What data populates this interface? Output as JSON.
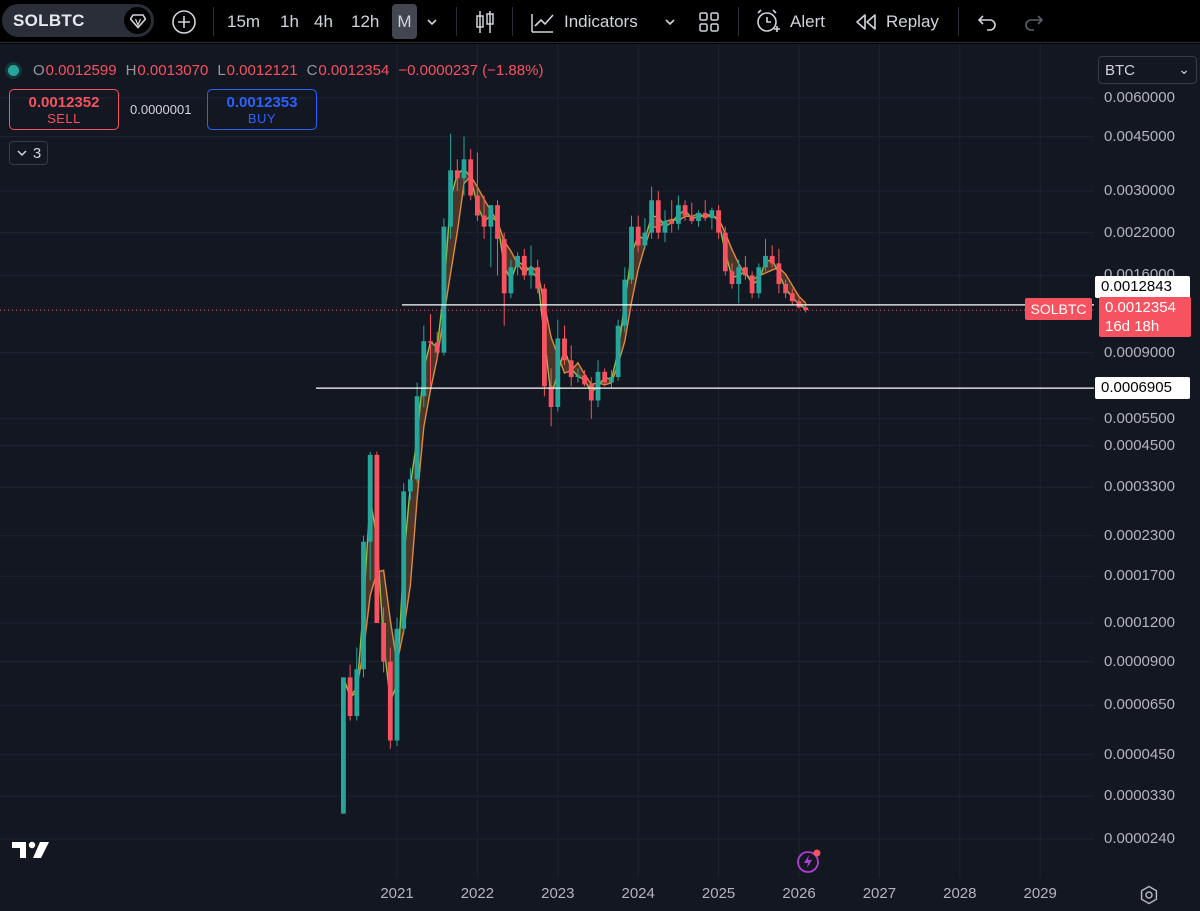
{
  "toolbar": {
    "symbol": "SOLBTC",
    "intervals": [
      "15m",
      "1h",
      "4h",
      "12h",
      "M"
    ],
    "active_interval": "M",
    "indicators_label": "Indicators",
    "alert_label": "Alert",
    "replay_label": "Replay"
  },
  "legend": {
    "open_key": "O",
    "open": "0.0012599",
    "high_key": "H",
    "high": "0.0013070",
    "low_key": "L",
    "low": "0.0012121",
    "close_key": "C",
    "close": "0.0012354",
    "change": "−0.0000237 (−1.88%)"
  },
  "trade": {
    "sell_price": "0.0012352",
    "sell_label": "SELL",
    "spread": "0.0000001",
    "buy_price": "0.0012353",
    "buy_label": "BUY"
  },
  "indicators_collapsed_count": "3",
  "currency": "BTC",
  "price_axis": {
    "ticks": [
      "0.0060000",
      "0.0045000",
      "0.0030000",
      "0.0022000",
      "0.0016000",
      "0.0009000",
      "0.0005500",
      "0.0004500",
      "0.0003300",
      "0.0002300",
      "0.0001700",
      "0.0001200",
      "0.0000900",
      "0.0000650",
      "0.0000450",
      "0.0000330",
      "0.0000240"
    ],
    "hline_upper_label": "0.0012843",
    "hline_lower_label": "0.0006905",
    "current_price": "0.0012354",
    "countdown": "16d 18h",
    "symbol_tag": "SOLBTC"
  },
  "time_axis": [
    "2021",
    "2022",
    "2023",
    "2024",
    "2025",
    "2026",
    "2027",
    "2028",
    "2029"
  ],
  "colors": {
    "up": "#26a69a",
    "down": "#f7525f",
    "background": "#131722",
    "ma_fast": "#8bc34a",
    "ma_slow": "#e08a3c",
    "accent_buy": "#2962ff"
  },
  "chart_data": {
    "type": "candlestick",
    "scale": "log",
    "series_name": "SOLBTC",
    "interval": "1M",
    "y_ticks": [
      2.4e-05,
      3.3e-05,
      4.5e-05,
      6.5e-05,
      9e-05,
      0.00012,
      0.00017,
      0.00023,
      0.00033,
      0.00045,
      0.00055,
      0.0009,
      0.0016,
      0.0022,
      0.003,
      0.0045,
      0.006
    ],
    "candles": [
      {
        "t": "2020-05",
        "o": 2.9e-05,
        "h": 8e-05,
        "l": 2.9e-05,
        "c": 8e-05
      },
      {
        "t": "2020-06",
        "o": 8e-05,
        "h": 8.8e-05,
        "l": 5.8e-05,
        "c": 6e-05
      },
      {
        "t": "2020-07",
        "o": 6e-05,
        "h": 0.0001,
        "l": 5.8e-05,
        "c": 8.5e-05
      },
      {
        "t": "2020-08",
        "o": 8.5e-05,
        "h": 0.00023,
        "l": 8e-05,
        "c": 0.00022
      },
      {
        "t": "2020-09",
        "o": 0.00022,
        "h": 0.00043,
        "l": 0.000165,
        "c": 0.00042
      },
      {
        "t": "2020-10",
        "o": 0.00042,
        "h": 0.00043,
        "l": 0.00012,
        "c": 0.00012
      },
      {
        "t": "2020-11",
        "o": 0.00012,
        "h": 0.000135,
        "l": 8.3e-05,
        "c": 9e-05
      },
      {
        "t": "2020-12",
        "o": 9e-05,
        "h": 0.0001,
        "l": 4.7e-05,
        "c": 5e-05
      },
      {
        "t": "2021-01",
        "o": 5e-05,
        "h": 0.000125,
        "l": 4.8e-05,
        "c": 0.000115
      },
      {
        "t": "2021-02",
        "o": 0.000115,
        "h": 0.00034,
        "l": 0.00011,
        "c": 0.00032
      },
      {
        "t": "2021-03",
        "o": 0.00032,
        "h": 0.00038,
        "l": 0.0003,
        "c": 0.00035
      },
      {
        "t": "2021-04",
        "o": 0.00035,
        "h": 0.00072,
        "l": 0.00034,
        "c": 0.00065
      },
      {
        "t": "2021-05",
        "o": 0.00065,
        "h": 0.0011,
        "l": 0.0006,
        "c": 0.00098
      },
      {
        "t": "2021-06",
        "o": 0.00098,
        "h": 0.0012,
        "l": 0.0007,
        "c": 0.00097
      },
      {
        "t": "2021-07",
        "o": 0.00097,
        "h": 0.00105,
        "l": 0.00085,
        "c": 0.0009
      },
      {
        "t": "2021-08",
        "o": 0.0009,
        "h": 0.00245,
        "l": 0.00088,
        "c": 0.0023
      },
      {
        "t": "2021-09",
        "o": 0.0023,
        "h": 0.0046,
        "l": 0.0021,
        "c": 0.0035
      },
      {
        "t": "2021-10",
        "o": 0.0035,
        "h": 0.0038,
        "l": 0.003,
        "c": 0.0033
      },
      {
        "t": "2021-11",
        "o": 0.0033,
        "h": 0.0045,
        "l": 0.0029,
        "c": 0.0038
      },
      {
        "t": "2021-12",
        "o": 0.0038,
        "h": 0.0041,
        "l": 0.0028,
        "c": 0.0029
      },
      {
        "t": "2022-01",
        "o": 0.0029,
        "h": 0.004,
        "l": 0.0024,
        "c": 0.0025
      },
      {
        "t": "2022-02",
        "o": 0.0025,
        "h": 0.0029,
        "l": 0.0021,
        "c": 0.0023
      },
      {
        "t": "2022-03",
        "o": 0.0023,
        "h": 0.0027,
        "l": 0.0017,
        "c": 0.0027
      },
      {
        "t": "2022-04",
        "o": 0.0027,
        "h": 0.0028,
        "l": 0.0016,
        "c": 0.0021
      },
      {
        "t": "2022-05",
        "o": 0.0021,
        "h": 0.0022,
        "l": 0.0011,
        "c": 0.0014
      },
      {
        "t": "2022-06",
        "o": 0.0014,
        "h": 0.0018,
        "l": 0.00135,
        "c": 0.0017
      },
      {
        "t": "2022-07",
        "o": 0.0017,
        "h": 0.0019,
        "l": 0.0016,
        "c": 0.00185
      },
      {
        "t": "2022-08",
        "o": 0.00185,
        "h": 0.00195,
        "l": 0.00155,
        "c": 0.0016
      },
      {
        "t": "2022-09",
        "o": 0.0016,
        "h": 0.002,
        "l": 0.00145,
        "c": 0.0017
      },
      {
        "t": "2022-10",
        "o": 0.0017,
        "h": 0.0018,
        "l": 0.0014,
        "c": 0.00145
      },
      {
        "t": "2022-11",
        "o": 0.00145,
        "h": 0.0015,
        "l": 0.00065,
        "c": 0.0007
      },
      {
        "t": "2022-12",
        "o": 0.0007,
        "h": 0.0008,
        "l": 0.00052,
        "c": 0.0006
      },
      {
        "t": "2023-01",
        "o": 0.0006,
        "h": 0.00115,
        "l": 0.00058,
        "c": 0.001
      },
      {
        "t": "2023-02",
        "o": 0.001,
        "h": 0.0011,
        "l": 0.00082,
        "c": 0.00085
      },
      {
        "t": "2023-03",
        "o": 0.00085,
        "h": 0.00095,
        "l": 0.0007,
        "c": 0.00075
      },
      {
        "t": "2023-04",
        "o": 0.00075,
        "h": 0.0008,
        "l": 0.00072,
        "c": 0.00076
      },
      {
        "t": "2023-05",
        "o": 0.00076,
        "h": 0.00079,
        "l": 0.0007,
        "c": 0.00071
      },
      {
        "t": "2023-06",
        "o": 0.00071,
        "h": 0.00075,
        "l": 0.00055,
        "c": 0.00063
      },
      {
        "t": "2023-07",
        "o": 0.00063,
        "h": 0.00085,
        "l": 0.0006,
        "c": 0.00078
      },
      {
        "t": "2023-08",
        "o": 0.00078,
        "h": 0.0008,
        "l": 0.0007,
        "c": 0.00072
      },
      {
        "t": "2023-09",
        "o": 0.00072,
        "h": 0.00079,
        "l": 0.00069,
        "c": 0.00075
      },
      {
        "t": "2023-10",
        "o": 0.00075,
        "h": 0.00115,
        "l": 0.00073,
        "c": 0.0011
      },
      {
        "t": "2023-11",
        "o": 0.0011,
        "h": 0.0017,
        "l": 0.00105,
        "c": 0.00155
      },
      {
        "t": "2023-12",
        "o": 0.00155,
        "h": 0.0025,
        "l": 0.0015,
        "c": 0.0023
      },
      {
        "t": "2024-01",
        "o": 0.0023,
        "h": 0.0025,
        "l": 0.0019,
        "c": 0.002
      },
      {
        "t": "2024-02",
        "o": 0.002,
        "h": 0.00245,
        "l": 0.00195,
        "c": 0.0022
      },
      {
        "t": "2024-03",
        "o": 0.0022,
        "h": 0.0031,
        "l": 0.0021,
        "c": 0.0028
      },
      {
        "t": "2024-04",
        "o": 0.0028,
        "h": 0.003,
        "l": 0.0021,
        "c": 0.0022
      },
      {
        "t": "2024-05",
        "o": 0.0022,
        "h": 0.0026,
        "l": 0.00205,
        "c": 0.0024
      },
      {
        "t": "2024-06",
        "o": 0.0024,
        "h": 0.0028,
        "l": 0.0022,
        "c": 0.00235
      },
      {
        "t": "2024-07",
        "o": 0.00235,
        "h": 0.0029,
        "l": 0.00225,
        "c": 0.0027
      },
      {
        "t": "2024-08",
        "o": 0.0027,
        "h": 0.0028,
        "l": 0.0024,
        "c": 0.0025
      },
      {
        "t": "2024-09",
        "o": 0.0025,
        "h": 0.00275,
        "l": 0.00235,
        "c": 0.0024
      },
      {
        "t": "2024-10",
        "o": 0.0024,
        "h": 0.0026,
        "l": 0.0023,
        "c": 0.00255
      },
      {
        "t": "2024-11",
        "o": 0.00255,
        "h": 0.0028,
        "l": 0.0024,
        "c": 0.00245
      },
      {
        "t": "2024-12",
        "o": 0.00245,
        "h": 0.00265,
        "l": 0.00225,
        "c": 0.0026
      },
      {
        "t": "2025-01",
        "o": 0.0026,
        "h": 0.0027,
        "l": 0.0021,
        "c": 0.0022
      },
      {
        "t": "2025-02",
        "o": 0.0022,
        "h": 0.0023,
        "l": 0.0016,
        "c": 0.00165
      },
      {
        "t": "2025-03",
        "o": 0.00165,
        "h": 0.00175,
        "l": 0.00145,
        "c": 0.0015
      },
      {
        "t": "2025-04",
        "o": 0.0015,
        "h": 0.0018,
        "l": 0.0013,
        "c": 0.0017
      },
      {
        "t": "2025-05",
        "o": 0.0017,
        "h": 0.00185,
        "l": 0.00155,
        "c": 0.0016
      },
      {
        "t": "2025-06",
        "o": 0.0016,
        "h": 0.00165,
        "l": 0.00135,
        "c": 0.0014
      },
      {
        "t": "2025-07",
        "o": 0.0014,
        "h": 0.00175,
        "l": 0.00135,
        "c": 0.0017
      },
      {
        "t": "2025-08",
        "o": 0.0017,
        "h": 0.0021,
        "l": 0.00165,
        "c": 0.00185
      },
      {
        "t": "2025-09",
        "o": 0.00185,
        "h": 0.002,
        "l": 0.0017,
        "c": 0.00175
      },
      {
        "t": "2025-10",
        "o": 0.00175,
        "h": 0.00195,
        "l": 0.0014,
        "c": 0.0015
      },
      {
        "t": "2025-11",
        "o": 0.0015,
        "h": 0.00155,
        "l": 0.00135,
        "c": 0.0014
      },
      {
        "t": "2025-12",
        "o": 0.0014,
        "h": 0.00145,
        "l": 0.00128,
        "c": 0.00132
      },
      {
        "t": "2026-01",
        "o": 0.00132,
        "h": 0.00135,
        "l": 0.00125,
        "c": 0.00126
      },
      {
        "t": "2026-02",
        "o": 0.0012599,
        "h": 0.001307,
        "l": 0.0012121,
        "c": 0.0012354
      }
    ],
    "horizontal_lines": [
      0.0012843,
      0.0006905
    ],
    "x_ticks": [
      "2021",
      "2022",
      "2023",
      "2024",
      "2025",
      "2026",
      "2027",
      "2028",
      "2029"
    ]
  }
}
